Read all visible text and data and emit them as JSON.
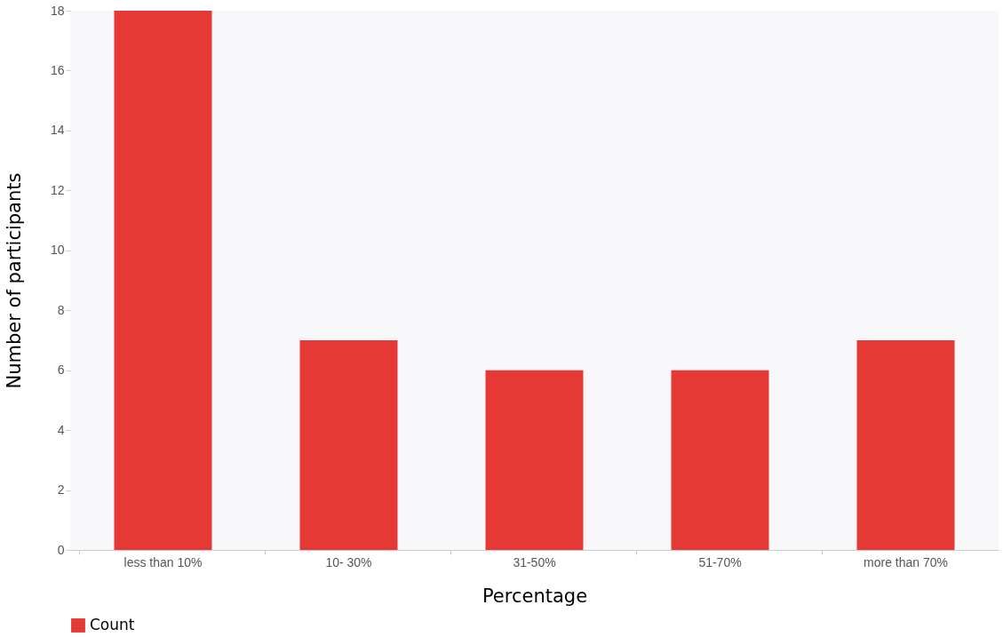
{
  "chart_data": {
    "type": "bar",
    "xlabel": "Percentage",
    "ylabel": "Number of participants",
    "categories": [
      "less than 10%",
      "10- 30%",
      "31-50%",
      "51-70%",
      "more than 70%"
    ],
    "series": [
      {
        "name": "Count",
        "color": "#e53935",
        "values": [
          18,
          7,
          6,
          6,
          7
        ]
      }
    ],
    "ylim": [
      0,
      18
    ],
    "yticks": [
      0,
      2,
      4,
      6,
      8,
      10,
      12,
      14,
      16,
      18
    ],
    "grid": false,
    "legend": "bottom"
  }
}
